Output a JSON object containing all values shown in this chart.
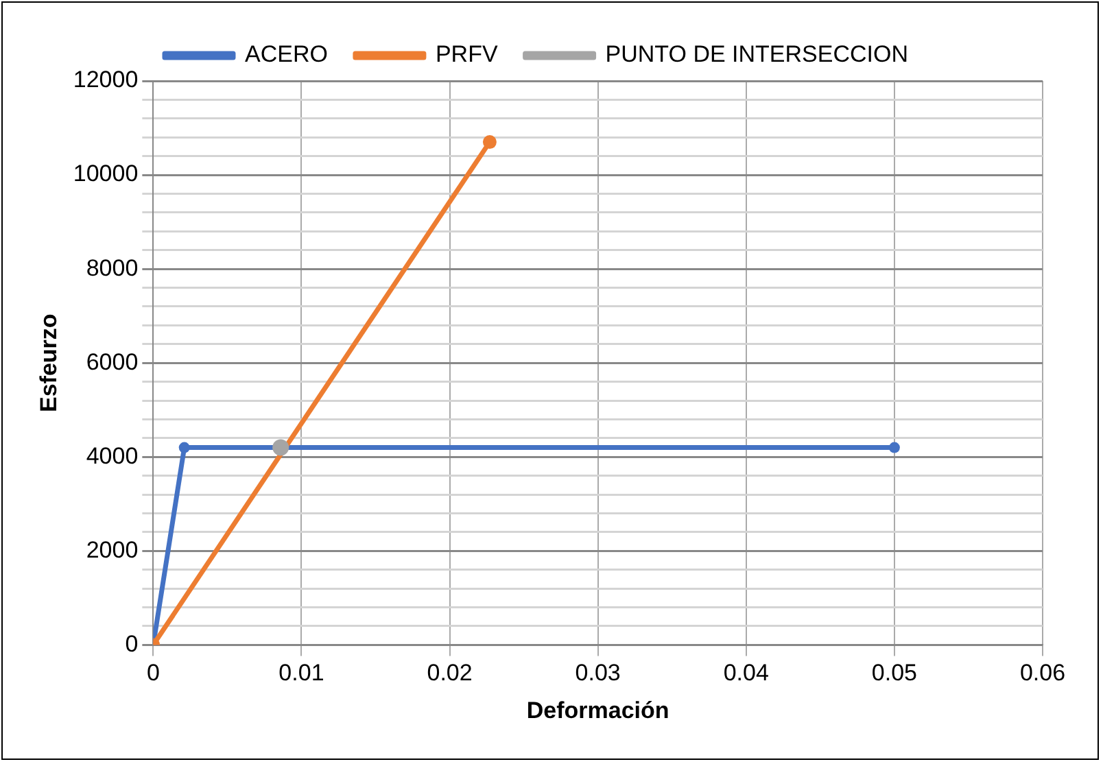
{
  "chart_data": {
    "type": "line",
    "xlabel": "Deformación",
    "ylabel": "Esfeurzo",
    "legend": "top",
    "marker": "circle",
    "grid": true,
    "xlim": [
      0,
      0.06
    ],
    "xticks": [
      0,
      0.01,
      0.02,
      0.03,
      0.04,
      0.05,
      0.06
    ],
    "ylim": [
      0,
      12000
    ],
    "yticks": [
      0,
      {
        "value": 400,
        "label": null
      },
      {
        "value": 800,
        "label": null
      },
      {
        "value": 1200,
        "label": null
      },
      {
        "value": 1600,
        "label": null
      },
      2000,
      {
        "value": 2400,
        "label": null
      },
      {
        "value": 2800,
        "label": null
      },
      {
        "value": 3200,
        "label": null
      },
      {
        "value": 3600,
        "label": null
      },
      4000,
      {
        "value": 4400,
        "label": null
      },
      {
        "value": 4800,
        "label": null
      },
      {
        "value": 5200,
        "label": null
      },
      {
        "value": 5600,
        "label": null
      },
      6000,
      {
        "value": 6400,
        "label": null
      },
      {
        "value": 6800,
        "label": null
      },
      {
        "value": 7200,
        "label": null
      },
      {
        "value": 7600,
        "label": null
      },
      8000,
      {
        "value": 8400,
        "label": null
      },
      {
        "value": 8800,
        "label": null
      },
      {
        "value": 9200,
        "label": null
      },
      {
        "value": 9600,
        "label": null
      },
      10000,
      {
        "value": 10400,
        "label": null
      },
      {
        "value": 10800,
        "label": null
      },
      {
        "value": 11200,
        "label": null
      },
      {
        "value": 11600,
        "label": null
      },
      12000
    ],
    "series": [
      {
        "name": "ACERO",
        "color": "#4472c4",
        "x": [
          0,
          0.0021,
          0.05
        ],
        "values": [
          0,
          4200,
          4200
        ]
      },
      {
        "name": "PRFV",
        "color": "#ed7d31",
        "x": [
          0,
          0.0227
        ],
        "values": [
          0,
          10700
        ]
      },
      {
        "name": "PUNTO DE INTERSECCION",
        "color": "#a5a5a5",
        "x": [
          0.0086
        ],
        "values": [
          4200
        ]
      }
    ]
  }
}
